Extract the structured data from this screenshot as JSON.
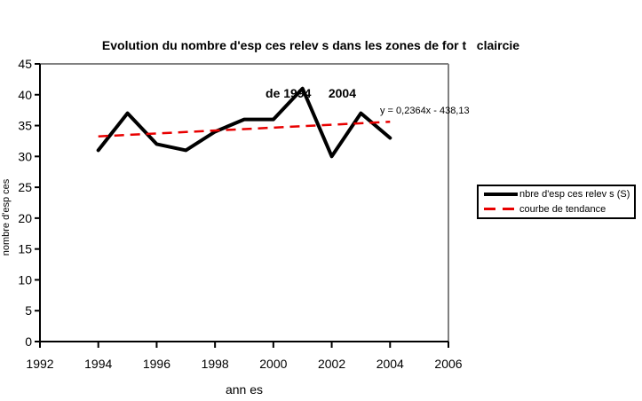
{
  "title": {
    "line1": "Evolution du nombre d'esp ces relev s dans les zones de for t   claircie",
    "line2": "de 1994     2004"
  },
  "chart_data": {
    "type": "line",
    "x": [
      1994,
      1995,
      1996,
      1997,
      1998,
      1999,
      2000,
      2001,
      2002,
      2003,
      2004
    ],
    "series": [
      {
        "name": "nbre d'esp ces relev s (S)",
        "values": [
          31,
          37,
          32,
          31,
          34,
          36,
          36,
          41,
          30,
          37,
          33
        ],
        "color": "#000000",
        "style": "solid-thick"
      },
      {
        "name": "courbe de tendance",
        "role": "trendline",
        "equation": "y = 0,2364x - 438,13",
        "slope": 0.2364,
        "intercept": -438.13,
        "x_range": [
          1994,
          2004
        ],
        "color": "#e80000",
        "style": "dashed"
      }
    ],
    "annotation": "y = 0,2364x - 438,13",
    "xlabel": "ann es",
    "ylabel": "nombre d'esp ces",
    "xlim": [
      1992,
      2006
    ],
    "ylim": [
      0,
      45
    ],
    "x_ticks": [
      1992,
      1994,
      1996,
      1998,
      2000,
      2002,
      2004,
      2006
    ],
    "y_ticks": [
      0,
      5,
      10,
      15,
      20,
      25,
      30,
      35,
      40,
      45
    ],
    "grid": false,
    "legend_position": "right-middle"
  },
  "colors": {
    "series_line": "#000000",
    "trend_line": "#e80000",
    "plot_border": "#808080",
    "axis": "#000000",
    "text": "#000000"
  }
}
